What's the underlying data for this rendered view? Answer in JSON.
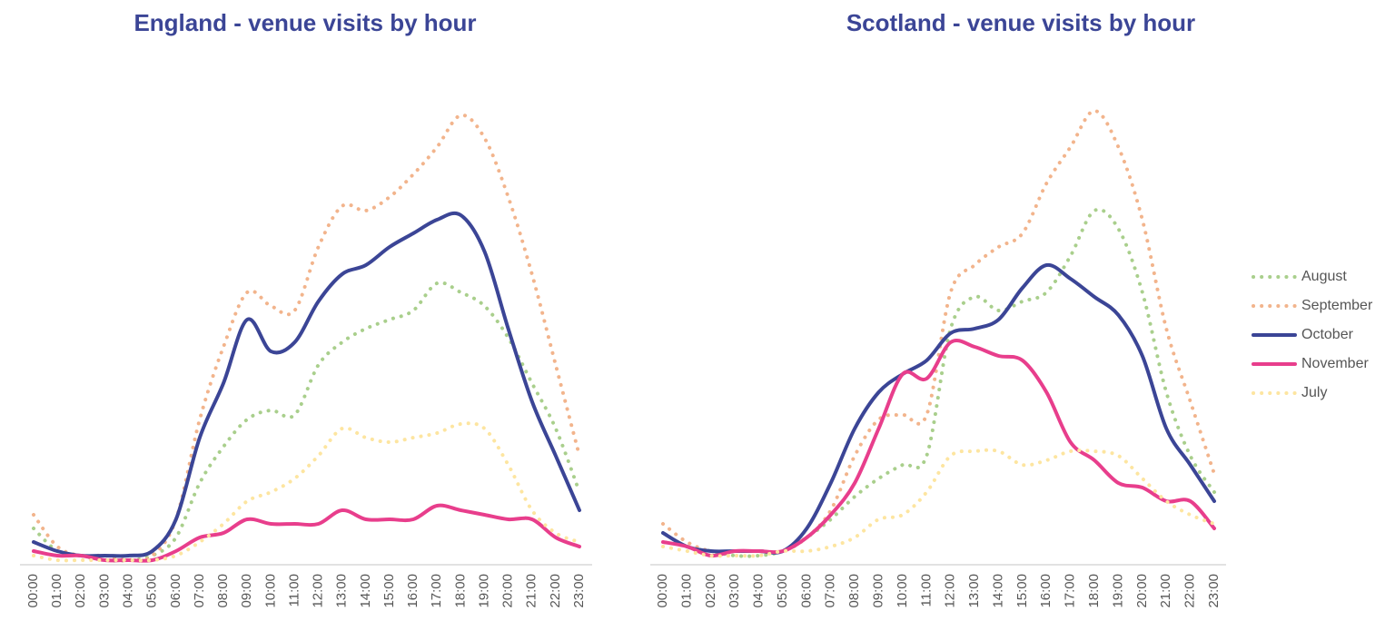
{
  "chart_data": [
    {
      "type": "line",
      "title": "England - venue visits by hour",
      "x": [
        "00:00",
        "01:00",
        "02:00",
        "03:00",
        "04:00",
        "05:00",
        "06:00",
        "07:00",
        "08:00",
        "09:00",
        "10:00",
        "11:00",
        "12:00",
        "13:00",
        "14:00",
        "15:00",
        "16:00",
        "17:00",
        "18:00",
        "19:00",
        "20:00",
        "21:00",
        "22:00",
        "23:00"
      ],
      "ylim": [
        0,
        100
      ],
      "series": [
        {
          "color": "#a9cf8c",
          "style": "dotted",
          "values": [
            8,
            3,
            2,
            1,
            1,
            2,
            6,
            18,
            26,
            32,
            34,
            33,
            44,
            49,
            52,
            54,
            56,
            62,
            60,
            57,
            50,
            40,
            30,
            16
          ]
        },
        {
          "color": "#f2b48c",
          "style": "dotted",
          "values": [
            11,
            4,
            2,
            2,
            1,
            2,
            10,
            32,
            48,
            60,
            57,
            56,
            70,
            79,
            78,
            81,
            86,
            92,
            99,
            94,
            81,
            64,
            44,
            24
          ]
        },
        {
          "color": "#3b4596",
          "style": "solid",
          "values": [
            5,
            3,
            2,
            2,
            2,
            3,
            10,
            28,
            40,
            54,
            47,
            49,
            58,
            64,
            66,
            70,
            73,
            76,
            77,
            69,
            52,
            36,
            24,
            12
          ]
        },
        {
          "color": "#e83e8c",
          "style": "solid",
          "values": [
            3,
            2,
            2,
            1,
            1,
            1,
            3,
            6,
            7,
            10,
            9,
            9,
            9,
            12,
            10,
            10,
            10,
            13,
            12,
            11,
            10,
            10,
            6,
            4
          ]
        },
        {
          "color": "#fde5a0",
          "style": "dotted",
          "values": [
            2,
            1,
            1,
            1,
            1,
            1,
            2,
            5,
            9,
            14,
            16,
            19,
            24,
            30,
            28,
            27,
            28,
            29,
            31,
            30,
            22,
            12,
            7,
            5
          ]
        }
      ]
    },
    {
      "type": "line",
      "title": "Scotland - venue visits by hour",
      "x": [
        "00:00",
        "01:00",
        "02:00",
        "03:00",
        "04:00",
        "05:00",
        "06:00",
        "07:00",
        "08:00",
        "09:00",
        "10:00",
        "11:00",
        "12:00",
        "13:00",
        "14:00",
        "15:00",
        "16:00",
        "17:00",
        "18:00",
        "19:00",
        "20:00",
        "21:00",
        "22:00",
        "23:00"
      ],
      "ylim": [
        0,
        100
      ],
      "legend": "right",
      "series": [
        {
          "name": "August",
          "color": "#a9cf8c",
          "style": "dotted",
          "values": [
            7,
            4,
            3,
            2,
            2,
            3,
            6,
            10,
            15,
            19,
            22,
            24,
            52,
            59,
            56,
            58,
            60,
            68,
            78,
            74,
            60,
            38,
            24,
            16
          ]
        },
        {
          "name": "September",
          "color": "#f2b48c",
          "style": "dotted",
          "values": [
            9,
            5,
            3,
            3,
            3,
            3,
            6,
            12,
            24,
            32,
            33,
            33,
            60,
            66,
            70,
            73,
            84,
            92,
            100,
            92,
            76,
            52,
            36,
            20
          ]
        },
        {
          "name": "October",
          "color": "#3b4596",
          "style": "solid",
          "values": [
            7,
            4,
            3,
            3,
            3,
            3,
            8,
            18,
            30,
            38,
            42,
            45,
            51,
            52,
            54,
            61,
            66,
            63,
            59,
            55,
            46,
            30,
            22,
            14
          ]
        },
        {
          "name": "November",
          "color": "#e83e8c",
          "style": "solid",
          "values": [
            5,
            4,
            2,
            3,
            3,
            3,
            6,
            11,
            18,
            30,
            42,
            41,
            49,
            48,
            46,
            45,
            38,
            27,
            23,
            18,
            17,
            14,
            14,
            8
          ]
        },
        {
          "name": "July",
          "color": "#fde5a0",
          "style": "dotted",
          "values": [
            4,
            3,
            2,
            2,
            2,
            3,
            3,
            4,
            6,
            10,
            11,
            16,
            24,
            25,
            25,
            22,
            23,
            25,
            25,
            24,
            19,
            14,
            11,
            9
          ]
        }
      ]
    }
  ]
}
